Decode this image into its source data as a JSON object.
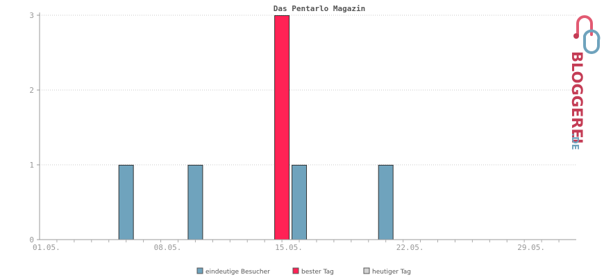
{
  "chart_data": {
    "type": "bar",
    "title": "Das Pentarlo Magazin",
    "xlabel": "",
    "ylabel": "",
    "x_tick_labels": [
      "01.05.",
      "08.05.",
      "15.05.",
      "22.05.",
      "29.05."
    ],
    "x_tick_days": [
      1,
      8,
      15,
      22,
      29
    ],
    "x_range_days": [
      0,
      31
    ],
    "ylim": [
      0,
      3
    ],
    "y_ticks": [
      0,
      1,
      2,
      3
    ],
    "grid": true,
    "legend_position": "bottom-center",
    "series": [
      {
        "name": "eindeutige Besucher",
        "color": "#6fa3bd",
        "days": [
          5,
          9,
          15,
          20
        ],
        "values": [
          1,
          1,
          1,
          1
        ]
      },
      {
        "name": "bester Tag",
        "color": "#ff2255",
        "days": [
          14
        ],
        "values": [
          3
        ]
      },
      {
        "name": "heutiger Tag",
        "color": "#d3d3d3",
        "days": [],
        "values": []
      }
    ]
  },
  "logo": {
    "main": "BLOGGEREI",
    "suffix": ".DE",
    "main_color": "#c43c55",
    "suffix_color": "#6fa3bd"
  }
}
